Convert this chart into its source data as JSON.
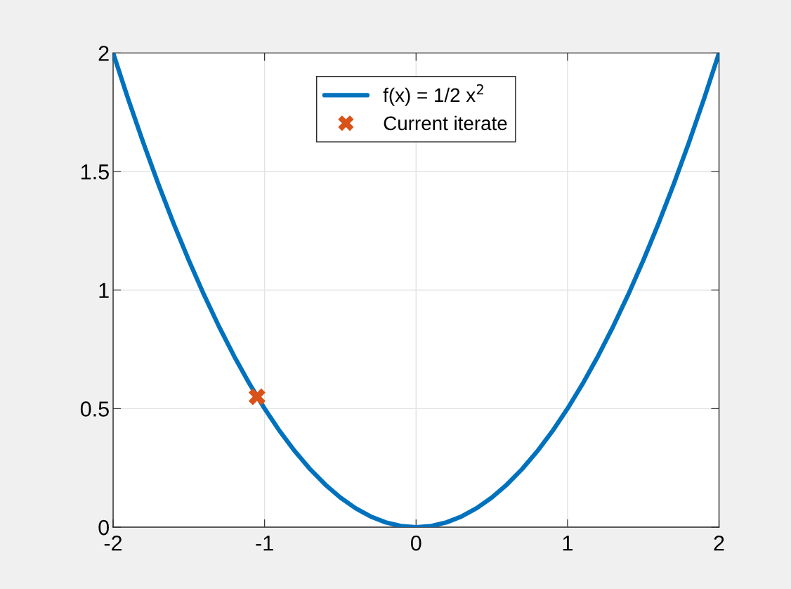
{
  "chart_data": {
    "type": "line",
    "series": [
      {
        "name": "f(x) = 1/2 x$^{2}$",
        "color": "#0072bd",
        "marker": "none",
        "line_style": "solid",
        "x": [
          -2,
          -1.9,
          -1.8,
          -1.7,
          -1.6,
          -1.5,
          -1.4,
          -1.3,
          -1.2,
          -1.1,
          -1,
          -0.9,
          -0.8,
          -0.7,
          -0.6,
          -0.5,
          -0.4,
          -0.3,
          -0.2,
          -0.1,
          0,
          0.1,
          0.2,
          0.3,
          0.4,
          0.5,
          0.6,
          0.7,
          0.8,
          0.9,
          1,
          1.1,
          1.2,
          1.3,
          1.4,
          1.5,
          1.6,
          1.7,
          1.8,
          1.9,
          2
        ],
        "values": [
          2,
          1.805,
          1.62,
          1.445,
          1.28,
          1.125,
          0.98,
          0.845,
          0.72,
          0.605,
          0.5,
          0.405,
          0.32,
          0.245,
          0.18,
          0.125,
          0.08,
          0.045,
          0.02,
          0.005,
          0,
          0.005,
          0.02,
          0.045,
          0.08,
          0.125,
          0.18,
          0.245,
          0.32,
          0.405,
          0.5,
          0.605,
          0.72,
          0.845,
          0.98,
          1.125,
          1.28,
          1.445,
          1.62,
          1.805,
          2
        ]
      },
      {
        "name": "Current iterate",
        "type": "scatter",
        "color": "#d95319",
        "marker": "cross",
        "x": [
          -1.05
        ],
        "values": [
          0.55
        ]
      }
    ],
    "xlim": [
      -2,
      2
    ],
    "xticks": [
      -2,
      -1,
      0,
      1,
      2
    ],
    "ylim": [
      0,
      2
    ],
    "yticks": [
      0,
      0.5,
      1,
      1.5,
      2
    ],
    "grid": true,
    "legend": "top"
  }
}
